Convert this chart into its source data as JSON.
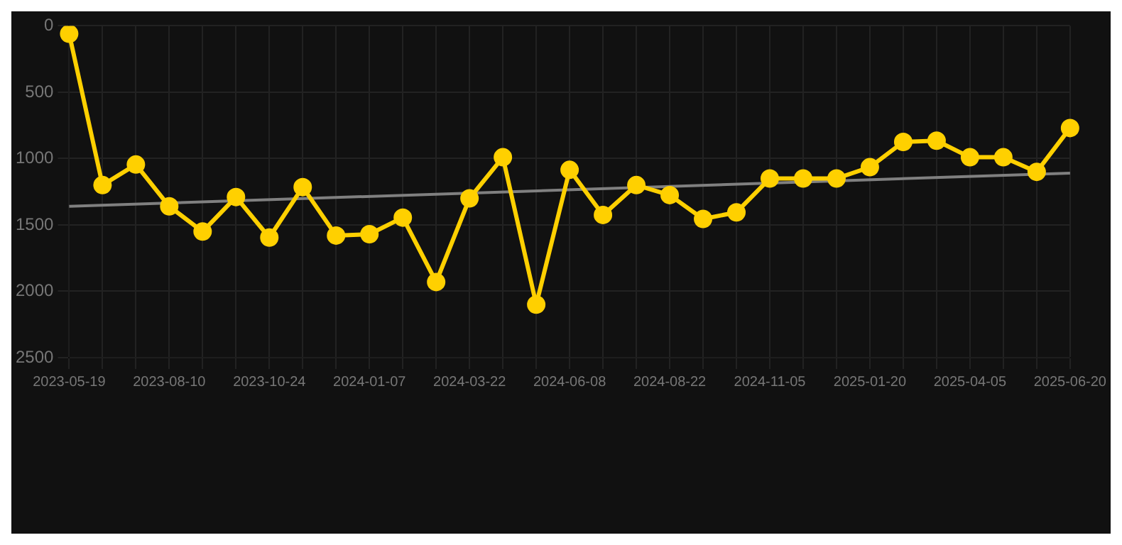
{
  "chart_data": {
    "type": "line",
    "categories": [
      "2023-05-19",
      null,
      null,
      "2023-08-10",
      null,
      null,
      "2023-10-24",
      null,
      null,
      "2024-01-07",
      null,
      null,
      "2024-03-22",
      null,
      null,
      "2024-06-08",
      null,
      null,
      "2024-08-22",
      null,
      null,
      "2024-11-05",
      null,
      null,
      "2025-01-20",
      null,
      null,
      "2025-04-05",
      null,
      null,
      "2025-06-20"
    ],
    "series": [
      {
        "color": "#ffd000",
        "values": [
          60,
          1200,
          1045,
          1360,
          1550,
          1290,
          1595,
          1215,
          1580,
          1570,
          1445,
          1930,
          1300,
          990,
          2100,
          1085,
          1425,
          1200,
          1275,
          1455,
          1405,
          1150,
          1150,
          1150,
          1065,
          875,
          865,
          990,
          990,
          1100,
          770
        ],
        "marker": "circle"
      },
      {
        "type": "line",
        "color": "#808080",
        "values": [
          1360,
          null,
          null,
          null,
          null,
          null,
          null,
          null,
          null,
          null,
          null,
          null,
          null,
          null,
          null,
          null,
          null,
          null,
          null,
          null,
          null,
          null,
          null,
          null,
          null,
          null,
          null,
          null,
          null,
          null,
          1110
        ],
        "marker": "none"
      }
    ],
    "ylim": [
      2500,
      0
    ],
    "yticks": [
      0,
      500,
      1000,
      1500,
      2000,
      2500
    ],
    "grid": true,
    "legend": false
  }
}
